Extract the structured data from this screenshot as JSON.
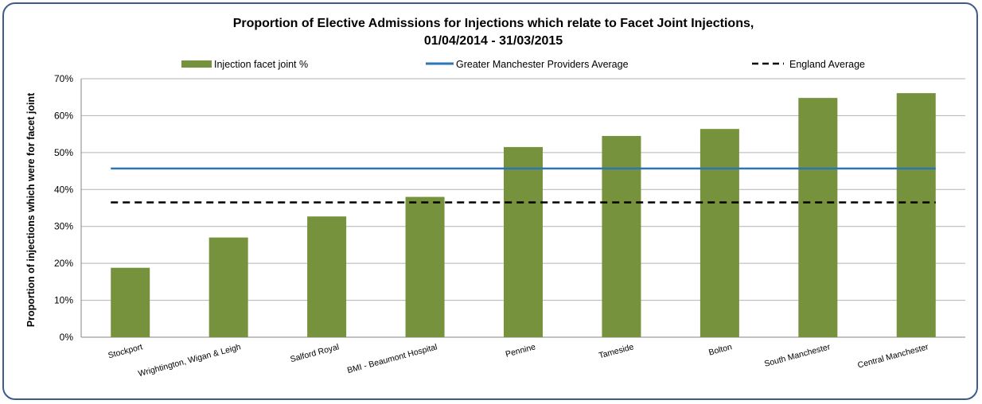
{
  "chart_data": {
    "type": "bar",
    "title_line1": "Proportion of Elective Admissions for Injections which relate to Facet Joint Injections,",
    "title_line2": "01/04/2014 - 31/03/2015",
    "ylabel": "Proportion of injections which were for facet joint",
    "xlabel": "",
    "ylim": [
      0,
      70
    ],
    "y_ticks": [
      "0%",
      "10%",
      "20%",
      "30%",
      "40%",
      "50%",
      "60%",
      "70%"
    ],
    "grid": true,
    "legend_position": "top",
    "categories": [
      "Stockport",
      "Wrightington, Wigan & Leigh",
      "Salford Royal",
      "BMI - Beaumont Hospital",
      "Pennine",
      "Tameside",
      "Bolton",
      "South Manchester",
      "Central Manchester"
    ],
    "series": [
      {
        "name": "Injection facet joint %",
        "kind": "bar",
        "color": "#76923c",
        "values": [
          18.8,
          27.0,
          32.7,
          38.0,
          51.5,
          54.5,
          56.4,
          64.8,
          66.1
        ]
      },
      {
        "name": "Greater Manchester Providers Average",
        "kind": "line",
        "color": "#2e75b6",
        "value": 45.7
      },
      {
        "name": "England Average",
        "kind": "dashed-line",
        "color": "#000000",
        "value": 36.5
      }
    ]
  }
}
